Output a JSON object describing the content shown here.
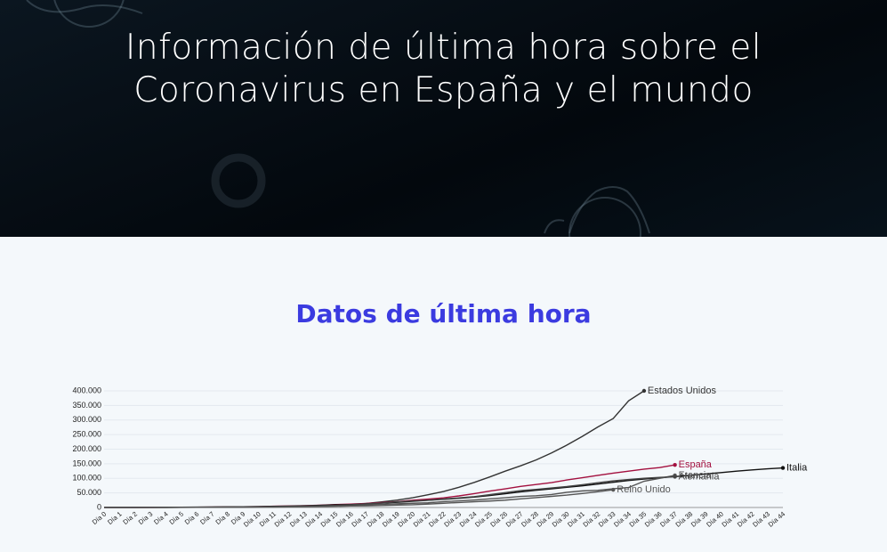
{
  "header": {
    "title": "Información de última hora sobre el Coronavirus en España y el mundo"
  },
  "chart_data": {
    "type": "line",
    "title": "Datos de última hora",
    "categories": [
      "Día 0",
      "Día 1",
      "Día 2",
      "Día 3",
      "Día 4",
      "Día 5",
      "Día 6",
      "Día 7",
      "Día 8",
      "Día 9",
      "Día 10",
      "Día 11",
      "Día 12",
      "Día 13",
      "Día 14",
      "Día 15",
      "Día 16",
      "Día 17",
      "Día 18",
      "Día 19",
      "Día 20",
      "Día 21",
      "Día 22",
      "Día 23",
      "Día 24",
      "Día 25",
      "Día 26",
      "Día 27",
      "Día 28",
      "Día 29",
      "Día 30",
      "Día 31",
      "Día 32",
      "Día 33",
      "Día 34",
      "Día 35",
      "Día 36",
      "Día 37",
      "Día 38",
      "Día 39",
      "Día 40",
      "Día 41",
      "Día 42",
      "Día 43",
      "Día 44"
    ],
    "ylim": [
      0,
      400000
    ],
    "yticks": [
      0,
      {
        "value": 50000,
        "label": "50.000"
      },
      {
        "value": 100000,
        "label": "100.000"
      },
      {
        "value": 150000,
        "label": "150.000"
      },
      {
        "value": 200000,
        "label": "200.000"
      },
      {
        "value": 250000,
        "label": "250.000"
      },
      {
        "value": 300000,
        "label": "300.000"
      },
      {
        "value": 350000,
        "label": "350.000"
      },
      {
        "value": 400000,
        "label": "400.000"
      }
    ],
    "grid": true,
    "series": [
      {
        "name": "Estados Unidos",
        "color": "#333333",
        "values": [
          100,
          150,
          200,
          300,
          400,
          500,
          700,
          1000,
          1300,
          1700,
          2200,
          2800,
          3500,
          4600,
          6400,
          7800,
          9400,
          13700,
          19100,
          25500,
          33300,
          43800,
          54800,
          69200,
          86000,
          104800,
          124700,
          143000,
          163000,
          187000,
          214000,
          244000,
          276000,
          305000,
          366000,
          400000,
          null,
          null,
          null,
          null,
          null,
          null,
          null,
          null,
          null
        ]
      },
      {
        "name": "España",
        "color": "#a3103f",
        "values": [
          100,
          200,
          300,
          400,
          500,
          700,
          1000,
          1300,
          1700,
          2300,
          3000,
          4200,
          5200,
          6400,
          7800,
          9900,
          11800,
          13700,
          17100,
          19900,
          24900,
          28600,
          33100,
          39700,
          47600,
          56200,
          64000,
          72200,
          78800,
          85200,
          94400,
          102100,
          110200,
          117700,
          124700,
          131600,
          136700,
          146000,
          null,
          null,
          null,
          null,
          null,
          null,
          null
        ]
      },
      {
        "name": "Italia",
        "color": "#111111",
        "values": [
          200,
          300,
          400,
          600,
          800,
          1000,
          1300,
          1700,
          2000,
          2500,
          3100,
          3900,
          4600,
          5900,
          7400,
          9200,
          10100,
          12500,
          15100,
          17700,
          21200,
          24700,
          27900,
          31500,
          35700,
          41000,
          47000,
          53600,
          59100,
          63900,
          69200,
          74400,
          80500,
          86500,
          92500,
          97700,
          101700,
          105800,
          110600,
          115200,
          119800,
          124600,
          128900,
          132500,
          135600
        ]
      },
      {
        "name": "Francia",
        "color": "#555555",
        "values": [
          100,
          150,
          200,
          300,
          400,
          600,
          700,
          1000,
          1200,
          1700,
          2300,
          2800,
          3700,
          4500,
          5400,
          6600,
          7700,
          9100,
          10900,
          12600,
          14500,
          16000,
          19900,
          22600,
          25600,
          29600,
          33400,
          38100,
          40200,
          44500,
          52100,
          56900,
          59100,
          64300,
          68600,
          90000,
          100000,
          110000,
          null,
          null,
          null,
          null,
          null,
          null,
          null
        ]
      },
      {
        "name": "Alemania",
        "color": "#444444",
        "values": [
          100,
          150,
          200,
          300,
          400,
          500,
          700,
          900,
          1100,
          1500,
          1900,
          2700,
          3700,
          4600,
          5800,
          7200,
          9300,
          12300,
          15300,
          19800,
          22200,
          24900,
          29000,
          32900,
          37300,
          43900,
          50900,
          57700,
          62100,
          66900,
          71800,
          77900,
          84800,
          91200,
          96100,
          100100,
          103300,
          105500,
          null,
          null,
          null,
          null,
          null,
          null,
          null
        ]
      },
      {
        "name": "Reino Unido",
        "color": "#555555",
        "values": [
          100,
          150,
          200,
          250,
          300,
          400,
          500,
          600,
          800,
          1100,
          1400,
          1500,
          2000,
          2600,
          3300,
          4000,
          5000,
          5700,
          6700,
          8100,
          9500,
          11700,
          14500,
          17100,
          19500,
          22100,
          25200,
          29500,
          33700,
          38200,
          42500,
          48000,
          54000,
          60700,
          null,
          null,
          null,
          null,
          null,
          null,
          null,
          null,
          null,
          null,
          null
        ]
      }
    ]
  }
}
